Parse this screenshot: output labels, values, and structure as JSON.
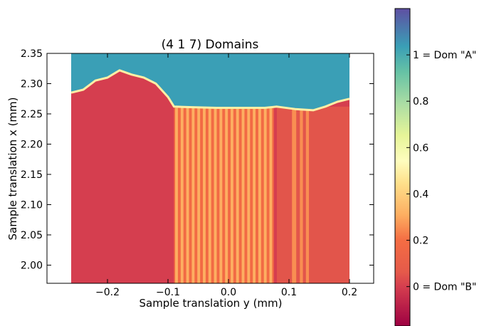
{
  "chart_data": {
    "type": "heatmap",
    "title": "(4 1 7)  Domains",
    "xlabel": "Sample translation y (mm)",
    "ylabel": "Sample translation x (mm)",
    "xlim": [
      -0.3,
      0.24
    ],
    "ylim": [
      1.97,
      2.35
    ],
    "data_extent": {
      "x": [
        -0.26,
        0.2
      ],
      "y": [
        1.97,
        2.35
      ]
    },
    "xticks": [
      -0.2,
      -0.1,
      0.0,
      0.1,
      0.2
    ],
    "xtick_labels": [
      "−0.2",
      "−0.1",
      "0.0",
      "0.1",
      "0.2"
    ],
    "yticks": [
      2.0,
      2.05,
      2.1,
      2.15,
      2.2,
      2.25,
      2.3,
      2.35
    ],
    "ytick_labels": [
      "2.00",
      "2.05",
      "2.10",
      "2.15",
      "2.20",
      "2.25",
      "2.30",
      "2.35"
    ],
    "colormap": "Spectral",
    "colorbar": {
      "range": [
        -0.17,
        1.2
      ],
      "ticks": [
        0,
        0.2,
        0.4,
        0.6,
        0.8,
        1
      ],
      "tick_labels": [
        "0 = Dom \"B\"",
        "0.2",
        "0.4",
        "0.6",
        "0.8",
        "1 = Dom \"A\""
      ]
    },
    "regions": [
      {
        "description": "top band",
        "value": 1.0
      },
      {
        "description": "lower left",
        "value": 0.0
      },
      {
        "description": "central stripes",
        "value": 0.3
      },
      {
        "description": "right stripes",
        "value": 0.25
      },
      {
        "description": "right portion",
        "value": 0.05
      }
    ],
    "domain_boundary": [
      [
        -0.26,
        2.285
      ],
      [
        -0.24,
        2.29
      ],
      [
        -0.22,
        2.305
      ],
      [
        -0.2,
        2.31
      ],
      [
        -0.18,
        2.322
      ],
      [
        -0.16,
        2.315
      ],
      [
        -0.14,
        2.31
      ],
      [
        -0.12,
        2.3
      ],
      [
        -0.1,
        2.278
      ],
      [
        -0.09,
        2.262
      ],
      [
        -0.06,
        2.261
      ],
      [
        -0.02,
        2.26
      ],
      [
        0.02,
        2.26
      ],
      [
        0.06,
        2.26
      ],
      [
        0.08,
        2.262
      ],
      [
        0.11,
        2.258
      ],
      [
        0.14,
        2.256
      ],
      [
        0.16,
        2.262
      ],
      [
        0.18,
        2.27
      ],
      [
        0.2,
        2.275
      ]
    ],
    "stripes_center": {
      "x_start": -0.09,
      "x_end": 0.075,
      "y_top": 2.26,
      "y_bottom": 1.97,
      "count": 18
    },
    "stripes_right": [
      {
        "x": 0.105,
        "w": 0.007
      },
      {
        "x": 0.118,
        "w": 0.005
      },
      {
        "x": 0.128,
        "w": 0.005
      }
    ],
    "grid": false
  }
}
